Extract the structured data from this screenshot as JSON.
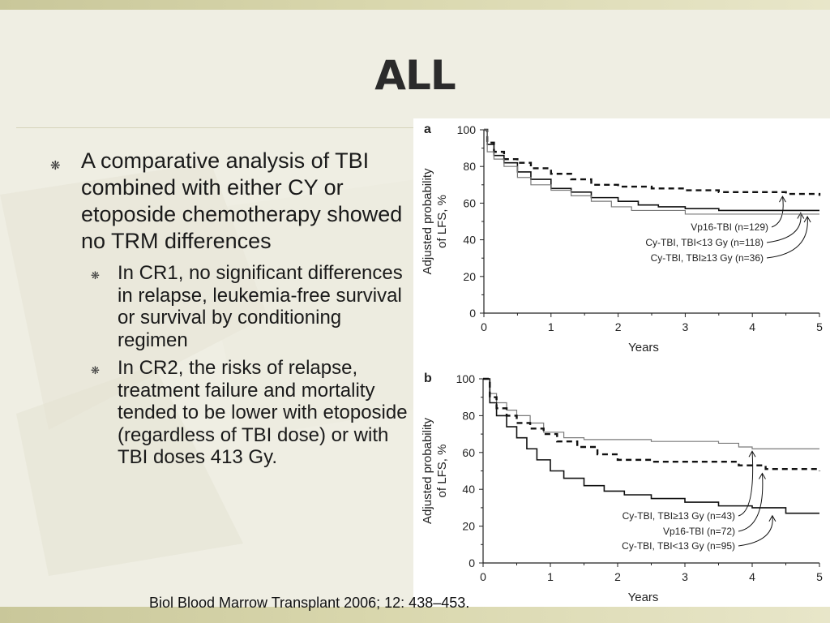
{
  "slide": {
    "title": "ALL",
    "bullets": [
      {
        "text": "A comparative analysis of TBI combined with either CY or etoposide chemotherapy showed no TRM differences",
        "sub": [
          "In CR1, no significant differences in relapse, leukemia-free survival or survival by conditioning regimen",
          "In CR2, the risks of relapse, treatment failure and mortality tended to be lower with etoposide (regardless of TBI dose) or with TBI doses 413 Gy."
        ]
      }
    ],
    "citation": "Biol Blood Marrow Transplant 2006; 12: 438–453."
  },
  "colors": {
    "background": "#efeee3",
    "band": "#cfcd9f",
    "panel": "#ffffff",
    "line": "#111111",
    "gray_line": "#777777"
  },
  "chart_data": [
    {
      "type": "line",
      "panel_label": "a",
      "xlabel": "Years",
      "ylabel": "Adjusted probability of LFS, %",
      "xlim": [
        0,
        5
      ],
      "ylim": [
        0,
        100
      ],
      "xticks": [
        "0",
        "1",
        "2",
        "3",
        "4",
        "5"
      ],
      "yticks": [
        "0",
        "20",
        "40",
        "60",
        "80",
        "100"
      ],
      "series": [
        {
          "name": "Vp16-TBI (n=129)",
          "style": "dashed",
          "x": [
            0,
            0.05,
            0.15,
            0.3,
            0.5,
            0.7,
            1.0,
            1.3,
            1.6,
            2.0,
            2.5,
            3.0,
            3.5,
            4.0,
            4.5,
            4.8,
            5.0
          ],
          "y": [
            100,
            93,
            88,
            84,
            82,
            79,
            76,
            73,
            70,
            69,
            68,
            67,
            66,
            66,
            65,
            65,
            64
          ]
        },
        {
          "name": "Cy-TBI, TBI<13 Gy (n=118)",
          "style": "solid",
          "x": [
            0,
            0.05,
            0.15,
            0.3,
            0.5,
            0.7,
            1.0,
            1.3,
            1.6,
            2.0,
            2.3,
            2.6,
            3.0,
            3.5,
            4.0,
            4.5,
            5.0
          ],
          "y": [
            100,
            92,
            86,
            82,
            77,
            73,
            68,
            66,
            63,
            61,
            59,
            58,
            57,
            56,
            56,
            56,
            56
          ]
        },
        {
          "name": "Cy-TBI, TBI≥13 Gy (n=36)",
          "style": "gray",
          "x": [
            0,
            0.05,
            0.15,
            0.3,
            0.5,
            0.7,
            1.0,
            1.3,
            1.6,
            1.9,
            2.2,
            2.5,
            3.0,
            3.5,
            4.0,
            4.5,
            5.0
          ],
          "y": [
            100,
            88,
            84,
            80,
            74,
            70,
            67,
            64,
            61,
            58,
            56,
            56,
            54,
            54,
            54,
            54,
            54
          ]
        }
      ]
    },
    {
      "type": "line",
      "panel_label": "b",
      "xlabel": "Years",
      "ylabel": "Adjusted probability of LFS, %",
      "xlim": [
        0,
        5
      ],
      "ylim": [
        0,
        100
      ],
      "xticks": [
        "0",
        "1",
        "2",
        "3",
        "4",
        "5"
      ],
      "yticks": [
        "0",
        "20",
        "40",
        "60",
        "80",
        "100"
      ],
      "series": [
        {
          "name": "Cy-TBI, TBI≥13 Gy (n=43)",
          "style": "gray",
          "x": [
            0,
            0.1,
            0.2,
            0.35,
            0.5,
            0.7,
            0.9,
            1.2,
            1.5,
            2.0,
            2.5,
            3.0,
            3.5,
            3.8,
            4.0,
            4.5,
            5.0
          ],
          "y": [
            100,
            92,
            87,
            83,
            80,
            76,
            71,
            68,
            67,
            67,
            66,
            66,
            65,
            63,
            62,
            62,
            62
          ]
        },
        {
          "name": "Vp16-TBI (n=72)",
          "style": "dashed",
          "x": [
            0,
            0.1,
            0.2,
            0.35,
            0.5,
            0.7,
            0.9,
            1.1,
            1.4,
            1.7,
            2.0,
            2.5,
            3.0,
            3.5,
            3.8,
            4.2,
            5.0
          ],
          "y": [
            100,
            90,
            84,
            80,
            76,
            73,
            70,
            66,
            63,
            59,
            56,
            55,
            55,
            55,
            53,
            51,
            50
          ]
        },
        {
          "name": "Cy-TBI, TBI<13 Gy (n=95)",
          "style": "solid",
          "x": [
            0,
            0.1,
            0.2,
            0.35,
            0.5,
            0.65,
            0.8,
            1.0,
            1.2,
            1.5,
            1.8,
            2.1,
            2.5,
            3.0,
            3.5,
            4.0,
            4.5,
            5.0
          ],
          "y": [
            100,
            87,
            80,
            74,
            68,
            62,
            56,
            50,
            46,
            42,
            39,
            37,
            35,
            33,
            31,
            30,
            27,
            27
          ]
        }
      ]
    }
  ]
}
